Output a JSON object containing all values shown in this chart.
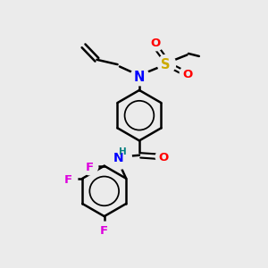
{
  "bg_color": "#ebebeb",
  "bond_color": "#000000",
  "bond_width": 1.8,
  "atom_colors": {
    "N": "#0000ff",
    "O": "#ff0000",
    "S": "#ccaa00",
    "F": "#dd00dd",
    "H": "#008080",
    "C": "#000000"
  },
  "font_size": 9.0,
  "fig_width": 3.0,
  "fig_height": 3.0,
  "dpi": 100
}
